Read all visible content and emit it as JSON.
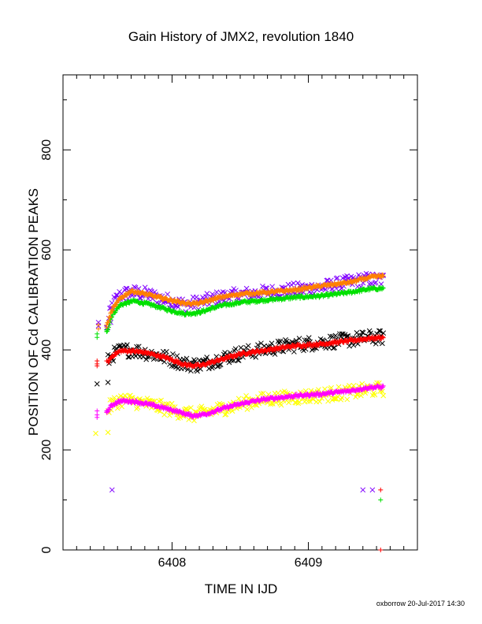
{
  "chart_data": {
    "type": "scatter",
    "title": "Gain History of JMX2, revolution 1840",
    "xlabel": "TIME IN IJD",
    "ylabel": "POSITION OF Cd CALIBRATION PEAKS",
    "xlim": [
      6407.2,
      6409.8
    ],
    "ylim": [
      0,
      950
    ],
    "x_ticks": [
      6408,
      6409
    ],
    "y_ticks": [
      0,
      200,
      400,
      600,
      800
    ],
    "grid": false,
    "legend": "none",
    "series": [
      {
        "color": "#8000ff",
        "marker": "x",
        "points": [
          [
            6407.46,
            455
          ],
          [
            6407.46,
            448
          ],
          [
            6407.55,
            455
          ],
          [
            6407.56,
            120
          ],
          [
            6409.4,
            120
          ],
          [
            6409.47,
            120
          ]
        ],
        "trend": [
          [
            6407.52,
            440
          ],
          [
            6407.56,
            490
          ],
          [
            6407.62,
            510
          ],
          [
            6407.7,
            515
          ],
          [
            6407.8,
            512
          ],
          [
            6407.95,
            500
          ],
          [
            6408.1,
            490
          ],
          [
            6408.2,
            495
          ],
          [
            6408.35,
            505
          ],
          [
            6408.5,
            510
          ],
          [
            6408.7,
            515
          ],
          [
            6408.9,
            520
          ],
          [
            6409.1,
            525
          ],
          [
            6409.3,
            535
          ],
          [
            6409.4,
            540
          ],
          [
            6409.55,
            540
          ]
        ],
        "scatter": 14
      },
      {
        "color": "#00e000",
        "marker": "+",
        "points": [
          [
            6407.45,
            432
          ],
          [
            6407.45,
            425
          ],
          [
            6407.52,
            440
          ],
          [
            6409.53,
            100
          ]
        ],
        "trend": [
          [
            6407.52,
            435
          ],
          [
            6407.56,
            470
          ],
          [
            6407.62,
            490
          ],
          [
            6407.72,
            498
          ],
          [
            6407.85,
            490
          ],
          [
            6408.0,
            478
          ],
          [
            6408.1,
            472
          ],
          [
            6408.2,
            475
          ],
          [
            6408.35,
            488
          ],
          [
            6408.5,
            495
          ],
          [
            6408.7,
            500
          ],
          [
            6408.9,
            505
          ],
          [
            6409.1,
            508
          ],
          [
            6409.3,
            515
          ],
          [
            6409.45,
            522
          ],
          [
            6409.55,
            523
          ]
        ],
        "scatter": 3
      },
      {
        "color": "#000000",
        "marker": "x",
        "points": [
          [
            6407.45,
            332
          ],
          [
            6407.53,
            335
          ]
        ],
        "trend": [
          [
            6407.53,
            378
          ],
          [
            6407.56,
            390
          ],
          [
            6407.62,
            398
          ],
          [
            6407.7,
            400
          ],
          [
            6407.8,
            395
          ],
          [
            6407.95,
            385
          ],
          [
            6408.1,
            372
          ],
          [
            6408.2,
            370
          ],
          [
            6408.35,
            382
          ],
          [
            6408.5,
            393
          ],
          [
            6408.7,
            402
          ],
          [
            6408.9,
            410
          ],
          [
            6409.1,
            415
          ],
          [
            6409.3,
            420
          ],
          [
            6409.45,
            425
          ],
          [
            6409.55,
            425
          ]
        ],
        "scatter": 14
      },
      {
        "color": "#ff0000",
        "marker": "+",
        "points": [
          [
            6407.45,
            378
          ],
          [
            6407.45,
            372
          ],
          [
            6407.45,
            368
          ],
          [
            6407.52,
            378
          ],
          [
            6409.53,
            120
          ],
          [
            6409.53,
            0
          ]
        ],
        "trend": [
          [
            6407.53,
            375
          ],
          [
            6407.56,
            388
          ],
          [
            6407.62,
            398
          ],
          [
            6407.7,
            398
          ],
          [
            6407.8,
            395
          ],
          [
            6407.95,
            385
          ],
          [
            6408.1,
            370
          ],
          [
            6408.2,
            368
          ],
          [
            6408.35,
            380
          ],
          [
            6408.5,
            392
          ],
          [
            6408.7,
            400
          ],
          [
            6408.9,
            408
          ],
          [
            6409.1,
            412
          ],
          [
            6409.3,
            418
          ],
          [
            6409.45,
            423
          ],
          [
            6409.55,
            425
          ]
        ],
        "scatter": 3
      },
      {
        "color": "#ffff00",
        "marker": "x",
        "points": [
          [
            6407.44,
            233
          ],
          [
            6407.53,
            235
          ]
        ],
        "trend": [
          [
            6407.53,
            280
          ],
          [
            6407.56,
            292
          ],
          [
            6407.62,
            300
          ],
          [
            6407.7,
            298
          ],
          [
            6407.85,
            290
          ],
          [
            6408.0,
            280
          ],
          [
            6408.15,
            270
          ],
          [
            6408.25,
            275
          ],
          [
            6408.4,
            285
          ],
          [
            6408.55,
            295
          ],
          [
            6408.7,
            302
          ],
          [
            6408.9,
            305
          ],
          [
            6409.1,
            310
          ],
          [
            6409.3,
            315
          ],
          [
            6409.45,
            320
          ],
          [
            6409.55,
            322
          ]
        ],
        "scatter": 14
      },
      {
        "color": "#ff00ff",
        "marker": "+",
        "points": [
          [
            6407.45,
            278
          ],
          [
            6407.45,
            270
          ],
          [
            6407.45,
            265
          ],
          [
            6407.52,
            275
          ]
        ],
        "trend": [
          [
            6407.52,
            275
          ],
          [
            6407.56,
            290
          ],
          [
            6407.62,
            298
          ],
          [
            6407.72,
            297
          ],
          [
            6407.85,
            290
          ],
          [
            6408.0,
            280
          ],
          [
            6408.15,
            268
          ],
          [
            6408.25,
            272
          ],
          [
            6408.4,
            285
          ],
          [
            6408.55,
            295
          ],
          [
            6408.7,
            302
          ],
          [
            6408.9,
            308
          ],
          [
            6409.1,
            312
          ],
          [
            6409.3,
            318
          ],
          [
            6409.45,
            325
          ],
          [
            6409.55,
            326
          ]
        ],
        "scatter": 3
      },
      {
        "color": "#ff8000",
        "marker": "+",
        "points": [
          [
            6407.46,
            450
          ],
          [
            6407.46,
            442
          ],
          [
            6407.52,
            450
          ]
        ],
        "trend": [
          [
            6407.52,
            448
          ],
          [
            6407.56,
            480
          ],
          [
            6407.62,
            503
          ],
          [
            6407.7,
            518
          ],
          [
            6407.8,
            512
          ],
          [
            6407.95,
            502
          ],
          [
            6408.1,
            493
          ],
          [
            6408.2,
            493
          ],
          [
            6408.35,
            505
          ],
          [
            6408.5,
            512
          ],
          [
            6408.7,
            515
          ],
          [
            6408.9,
            520
          ],
          [
            6409.1,
            528
          ],
          [
            6409.3,
            535
          ],
          [
            6409.45,
            545
          ],
          [
            6409.55,
            548
          ]
        ],
        "scatter": 3
      }
    ]
  },
  "footer": "oxborrow 20-Jul-2017 14:30"
}
